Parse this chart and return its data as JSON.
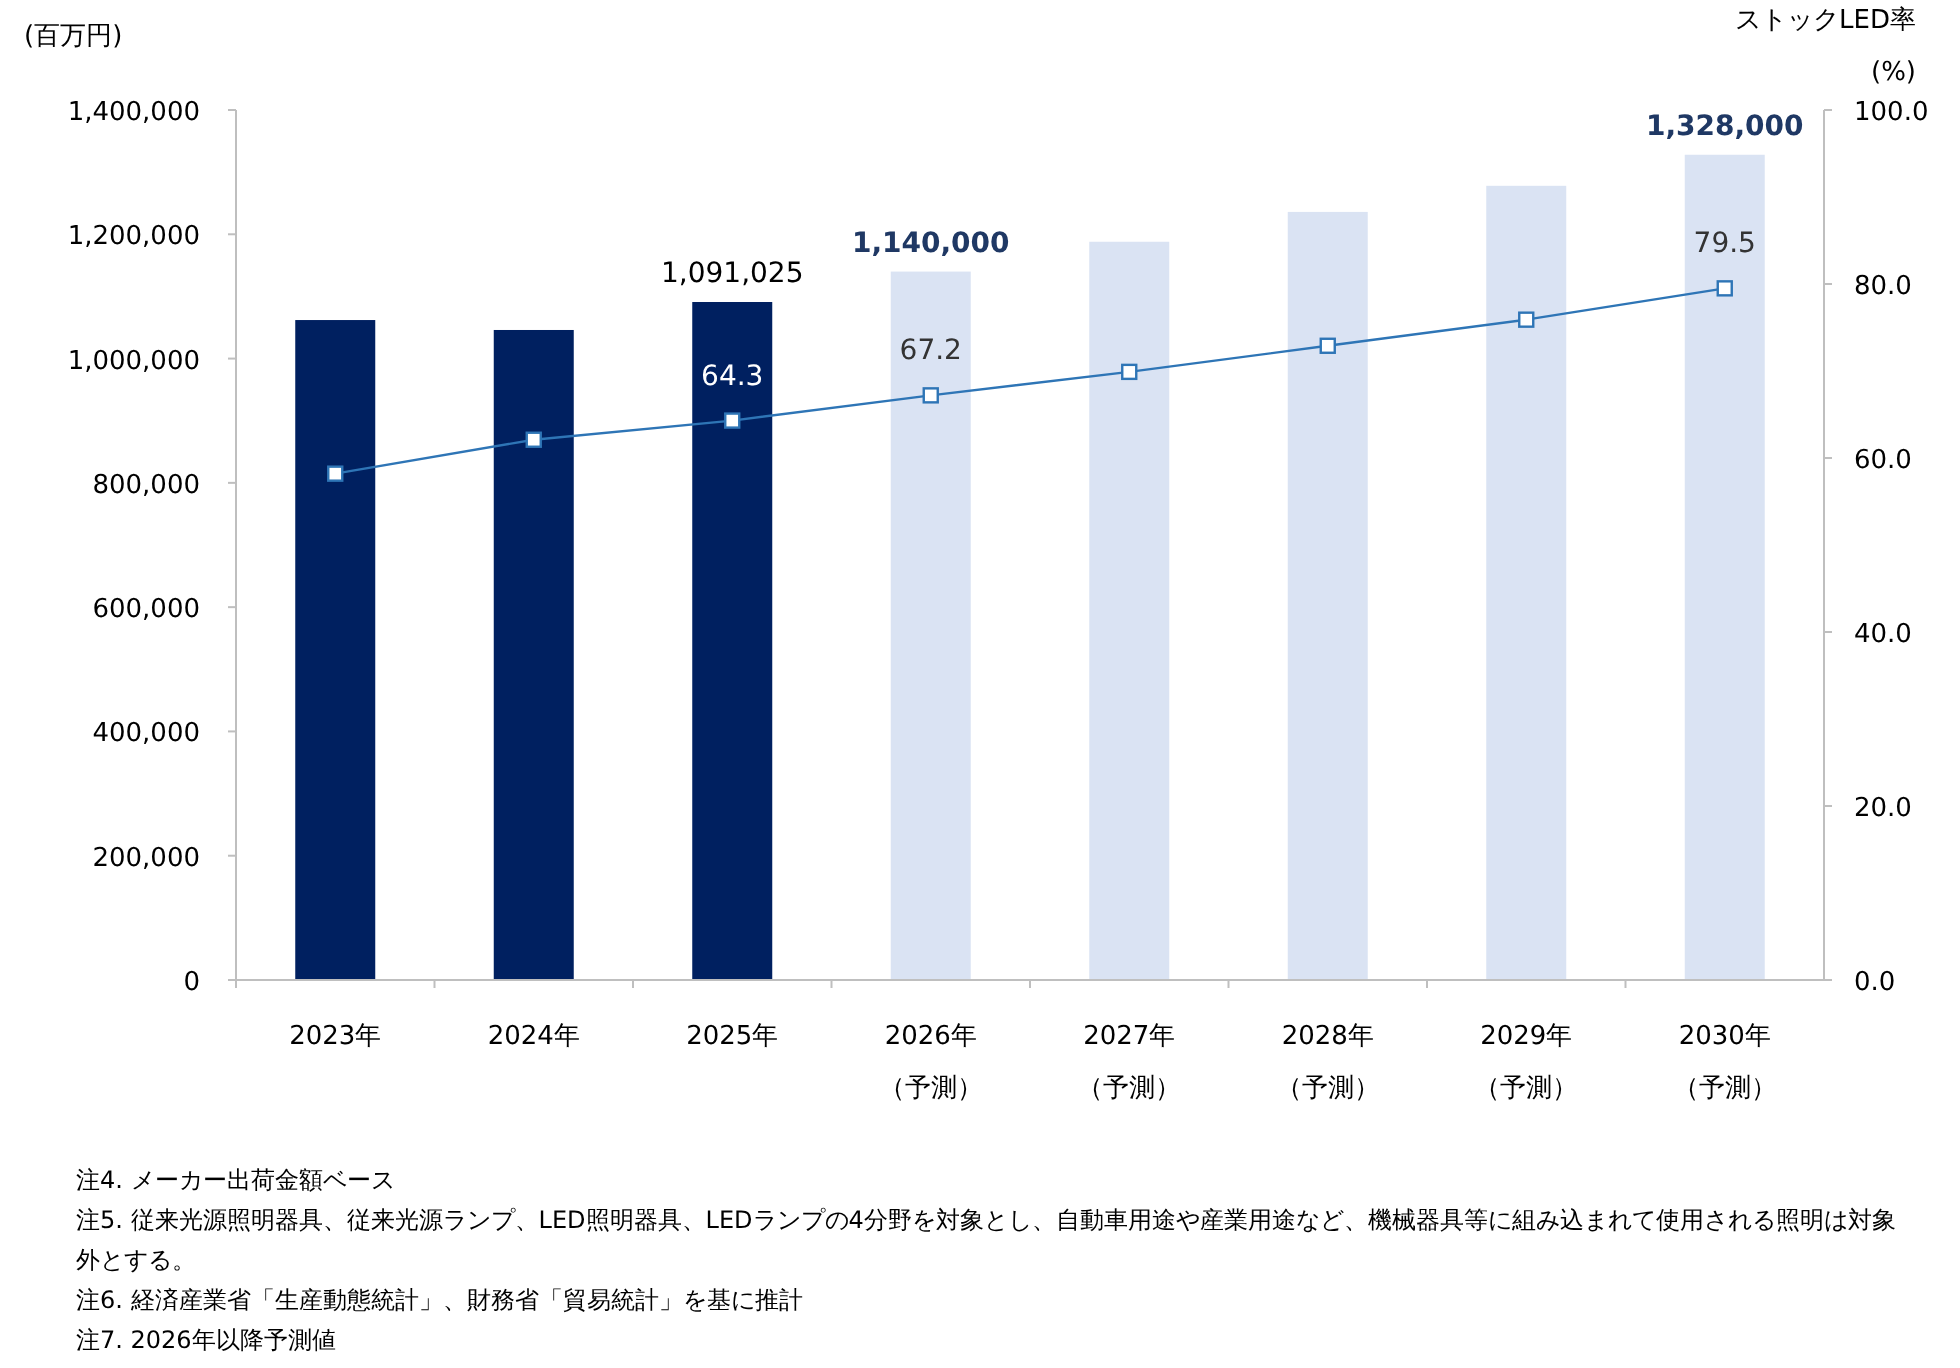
{
  "chart_data": {
    "type": "bar",
    "categories": [
      "2023年",
      "2024年",
      "2025年",
      "2026年（予測）",
      "2027年（予測）",
      "2028年（予測）",
      "2029年（予測）",
      "2030年（予測）"
    ],
    "ylabel": "(百万円)",
    "y2label": "ストックLED率\n(%)",
    "ylim": [
      0,
      1400000
    ],
    "yticks": [
      0,
      {
        "value": 200000,
        "label": "200,000"
      },
      {
        "value": 400000,
        "label": "400,000"
      },
      {
        "value": 600000,
        "label": "600,000"
      },
      {
        "value": 800000,
        "label": "800,000"
      },
      {
        "value": 1000000,
        "label": "1,000,000"
      },
      {
        "value": 1200000,
        "label": "1,200,000"
      },
      {
        "value": 1400000,
        "label": "1,400,000"
      }
    ],
    "y2lim": [
      0,
      100
    ],
    "y2ticks": [
      {
        "value": 0,
        "label": "0.0"
      },
      {
        "value": 20,
        "label": "20.0"
      },
      {
        "value": 40,
        "label": "40.0"
      },
      {
        "value": 60,
        "label": "60.0"
      },
      {
        "value": 80,
        "label": "80.0"
      },
      {
        "value": 100,
        "label": "100.0"
      }
    ],
    "series": [
      {
        "values": [
          1062000,
          1046000,
          1091025,
          1140000,
          1188000,
          1236000,
          1278000,
          1328000
        ],
        "colors": [
          "#002060",
          "#002060",
          "#002060",
          "#dae3f3",
          "#dae3f3",
          "#dae3f3",
          "#dae3f3",
          "#dae3f3"
        ],
        "value_labels": [
          null,
          null,
          "1,091,025",
          "**1,140,000**",
          null,
          null,
          null,
          "**1,328,000**"
        ]
      },
      {
        "type": "line",
        "axis": "y2",
        "color": "#2e75b6",
        "marker": "square",
        "values": [
          58.2,
          62.1,
          64.3,
          67.2,
          69.9,
          72.9,
          75.9,
          79.5
        ],
        "value_labels": [
          null,
          null,
          "64.3",
          "67.2",
          null,
          null,
          null,
          "79.5"
        ]
      }
    ],
    "grid": false,
    "annotations": [
      "注4. メーカー出荷金額ベース",
      "注5. 従来光源照明器具、従来光源ランプ、LED照明器具、LEDランプの4分野を対象とし、自動車用途や産業用途など、機械器具等に組み込まれて使用される照明は対象外とする。",
      "注6. 経済産業省「生産動態統計」、財務省「貿易統計」を基に推計",
      "注7. 2026年以降予測値"
    ]
  }
}
